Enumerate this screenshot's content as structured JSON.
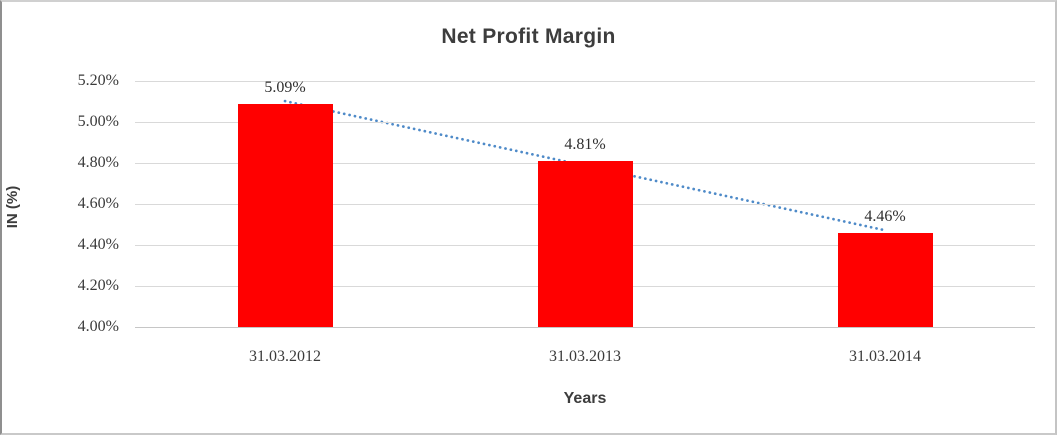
{
  "chart_data": {
    "type": "bar",
    "title": "Net Profit Margin",
    "xlabel": "Years",
    "ylabel": "IN (%)",
    "categories": [
      "31.03.2012",
      "31.03.2013",
      "31.03.2014"
    ],
    "values": [
      5.09,
      4.81,
      4.46
    ],
    "data_labels": [
      "5.09%",
      "4.81%",
      "4.46%"
    ],
    "ytick_labels": [
      "5.20%",
      "5.00%",
      "4.80%",
      "4.60%",
      "4.40%",
      "4.20%",
      "4.00%"
    ],
    "ytick_values": [
      5.2,
      5.0,
      4.8,
      4.6,
      4.4,
      4.2,
      4.0
    ],
    "ylim": [
      4.0,
      5.2
    ],
    "grid": true,
    "legend": "none",
    "bar_color": "#ff0000",
    "gridline_color": "#d9d9d9",
    "text_color": "#3d3d3d",
    "trendline": {
      "type": "linear",
      "style": "dotted",
      "color": "#4e8ac8",
      "start_value": 5.102,
      "end_value": 4.472
    }
  }
}
